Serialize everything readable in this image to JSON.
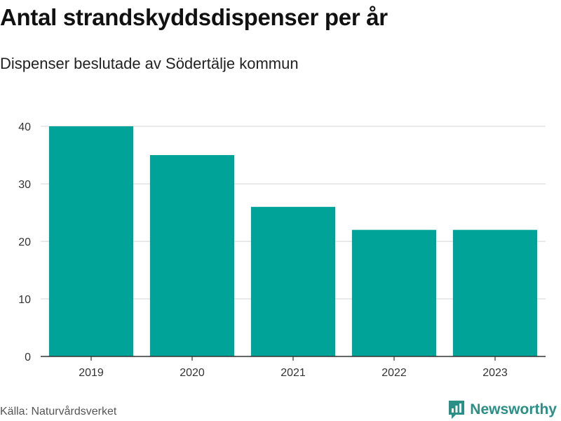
{
  "header": {
    "title": "Antal strandskyddsdispenser per år",
    "subtitle": "Dispenser beslutade av Södertälje kommun"
  },
  "footer": {
    "source": "Källa: Naturvårdsverket",
    "brand": "Newsworthy",
    "brand_color": "#2a8f86"
  },
  "colors": {
    "bar": "#00a398",
    "grid": "#dddddd",
    "axis": "#333333"
  },
  "chart_data": {
    "type": "bar",
    "title": "Antal strandskyddsdispenser per år",
    "subtitle": "Dispenser beslutade av Södertälje kommun",
    "categories": [
      "2019",
      "2020",
      "2021",
      "2022",
      "2023"
    ],
    "values": [
      40,
      35,
      26,
      22,
      22
    ],
    "xlabel": "",
    "ylabel": "",
    "ylim": [
      0,
      40
    ],
    "yticks": [
      0,
      10,
      20,
      30,
      40
    ],
    "grid": true
  }
}
